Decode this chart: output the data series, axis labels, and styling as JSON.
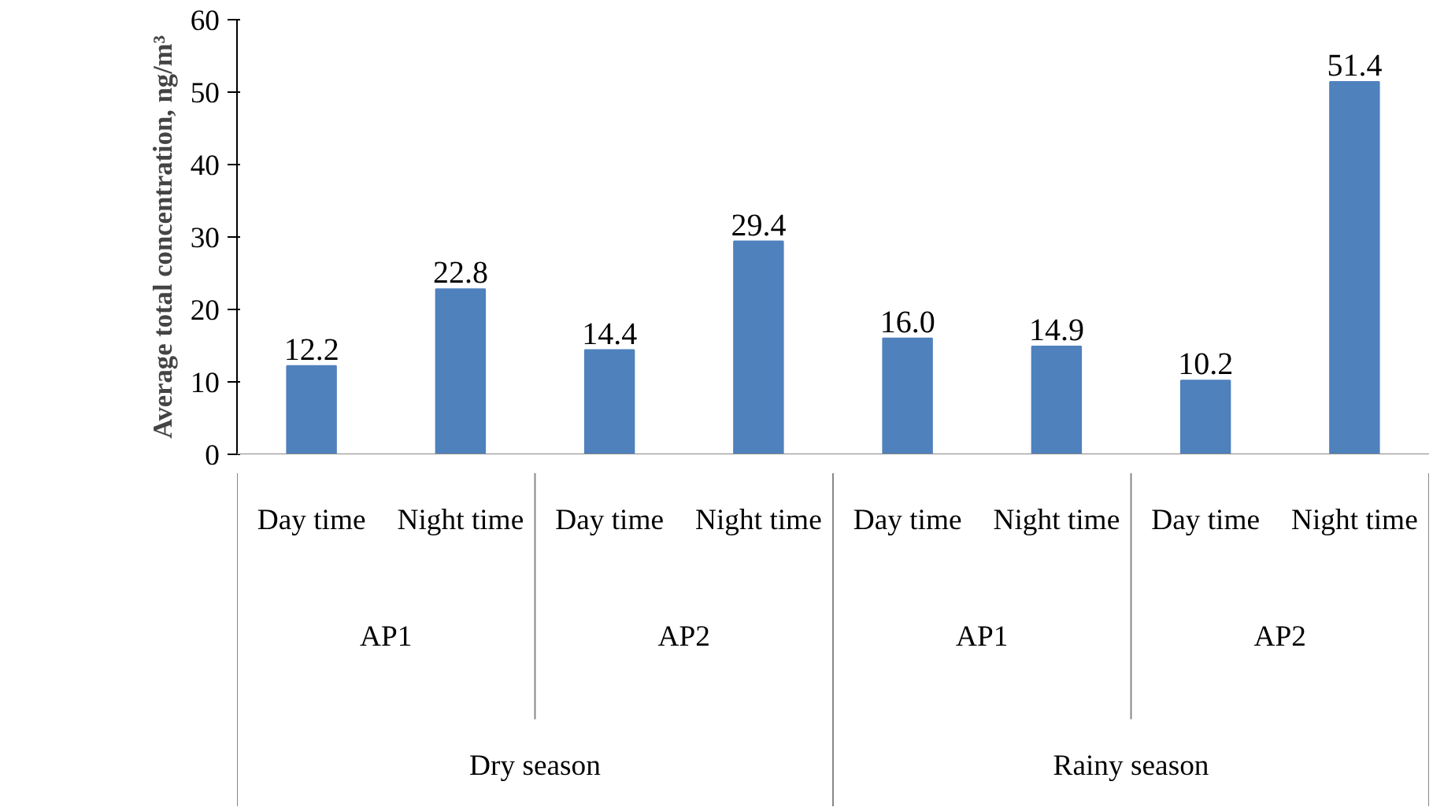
{
  "chart_data": {
    "type": "bar",
    "ylabel": "Average total concentration, ng/m³",
    "categories": [
      "Day time",
      "Night time",
      "Day time",
      "Night time",
      "Day time",
      "Night time",
      "Day time",
      "Night time"
    ],
    "annotations": [
      "AP1",
      "AP2",
      "AP1",
      "AP2",
      "Dry season",
      "Rainy season"
    ],
    "values": [
      12.2,
      22.8,
      14.4,
      29.4,
      16.0,
      14.9,
      10.2,
      51.4
    ],
    "value_labels": [
      "12.2",
      "22.8",
      "14.4",
      "29.4",
      "16.0",
      "14.9",
      "10.2",
      "51.4"
    ],
    "color": "#4f81bd",
    "ylim": [
      0,
      60
    ],
    "yticks": [
      0,
      10,
      20,
      30,
      40,
      50,
      60
    ],
    "grid": false
  }
}
